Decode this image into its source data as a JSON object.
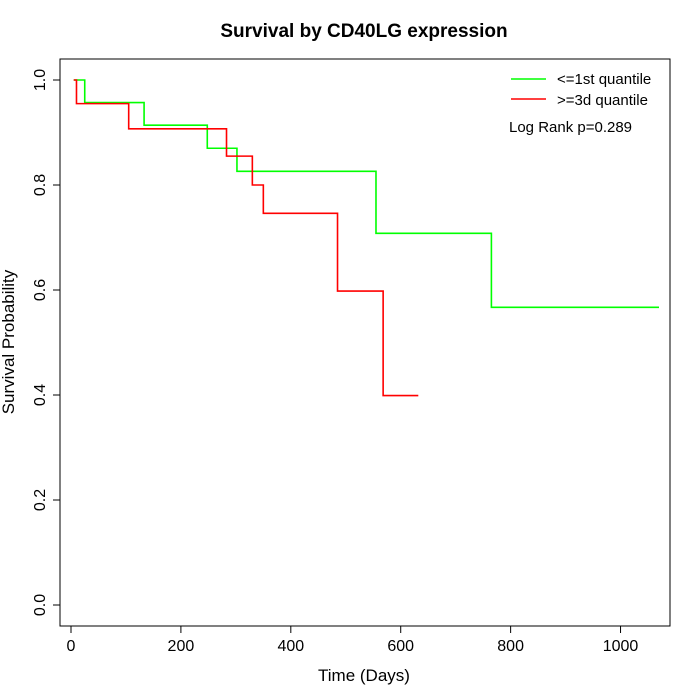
{
  "chart_data": {
    "type": "line",
    "title": "Survival by CD40LG expression",
    "xlabel": "Time (Days)",
    "ylabel": "Survival Probability",
    "xlim": [
      -20,
      1090
    ],
    "ylim": [
      -0.04,
      1.04
    ],
    "xticks": [
      0,
      200,
      400,
      600,
      800,
      1000
    ],
    "yticks": [
      0.0,
      0.2,
      0.4,
      0.6,
      0.8,
      1.0
    ],
    "xtick_labels": [
      "0",
      "200",
      "400",
      "600",
      "800",
      "1000"
    ],
    "ytick_labels": [
      "0.0",
      "0.2",
      "0.4",
      "0.6",
      "0.8",
      "1.0"
    ],
    "grid": false,
    "legend_position": "top-right",
    "series": [
      {
        "name": "<=1st quantile",
        "color": "#00ff00",
        "step_points": [
          [
            5,
            1.0
          ],
          [
            25,
            0.957
          ],
          [
            133,
            0.914
          ],
          [
            248,
            0.87
          ],
          [
            302,
            0.826
          ],
          [
            555,
            0.708
          ],
          [
            765,
            0.567
          ],
          [
            1070,
            0.567
          ]
        ]
      },
      {
        "name": ">=3d quantile",
        "color": "#ff0000",
        "step_points": [
          [
            5,
            1.0
          ],
          [
            10,
            0.955
          ],
          [
            105,
            0.907
          ],
          [
            283,
            0.855
          ],
          [
            330,
            0.8
          ],
          [
            350,
            0.746
          ],
          [
            485,
            0.598
          ],
          [
            568,
            0.399
          ],
          [
            632,
            0.399
          ]
        ]
      }
    ],
    "annotation": "Log Rank p=0.289"
  }
}
